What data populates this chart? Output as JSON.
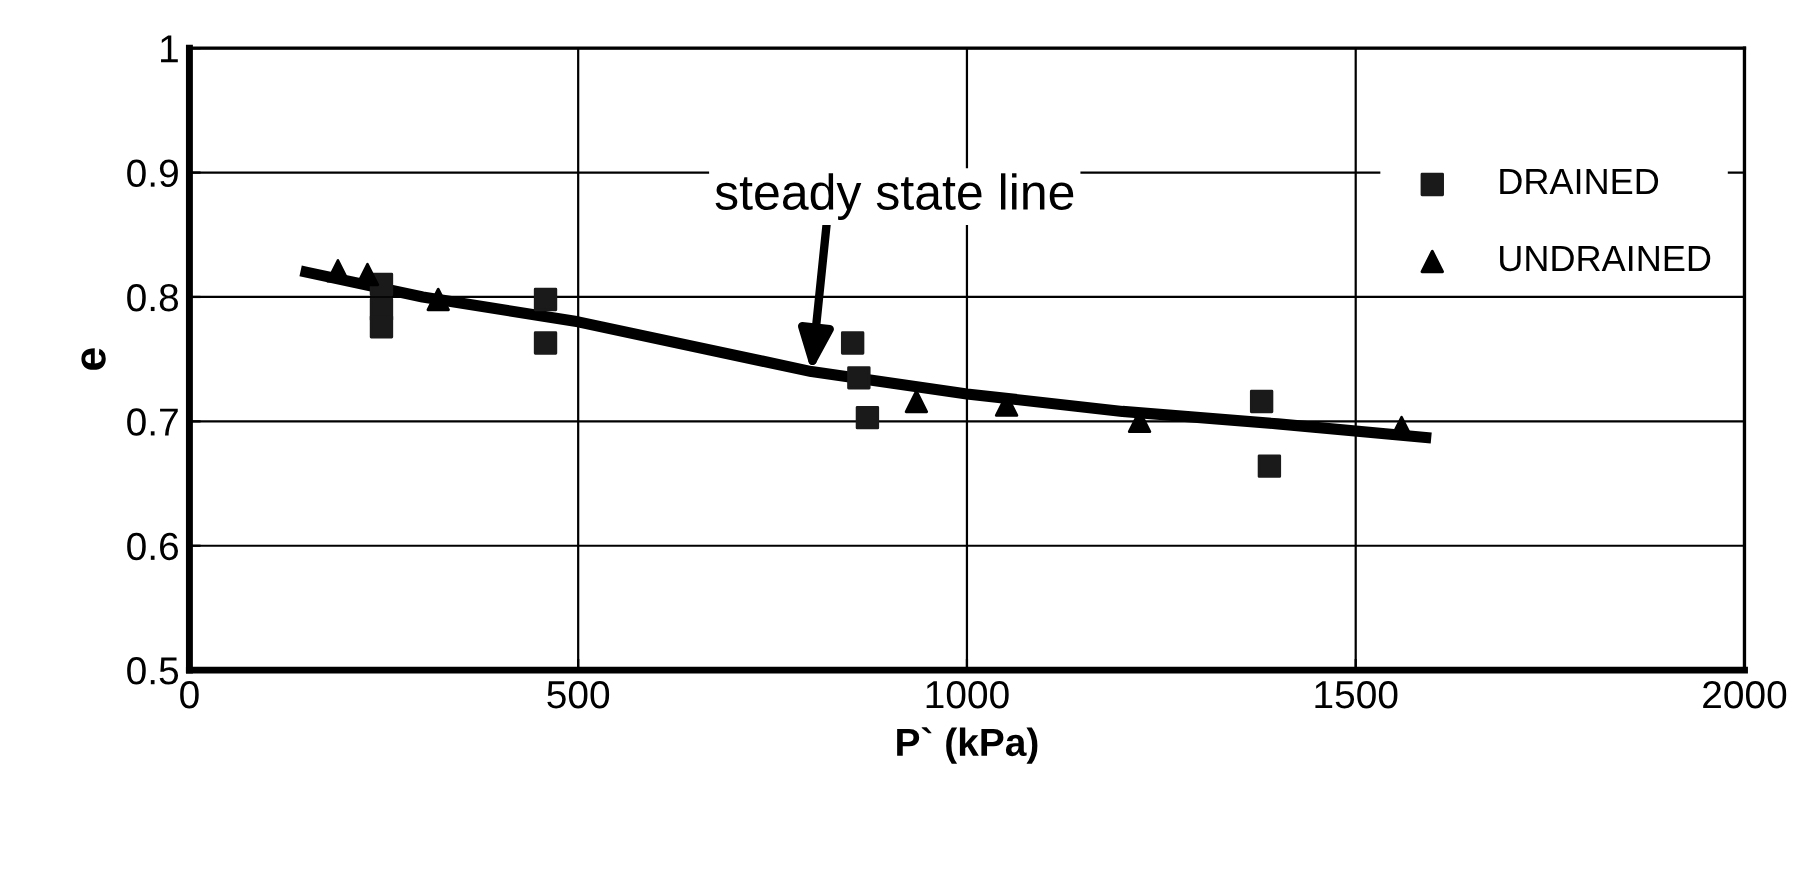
{
  "chart_data": {
    "type": "scatter",
    "xlabel": "P` (kPa)",
    "ylabel": "e",
    "xlim": [
      0,
      2000
    ],
    "xticks": [
      0,
      500,
      1000,
      1500,
      2000
    ],
    "ylim": [
      0.5,
      1
    ],
    "yticks": [
      0.5,
      0.6,
      0.7,
      0.8,
      0.9,
      1
    ],
    "grid": true,
    "legend": "top right",
    "series": [
      {
        "name": "DRAINED",
        "marker": "square",
        "color": "#1a1a1a",
        "x": [
          247,
          247,
          247,
          458,
          458,
          853,
          861,
          872,
          1379,
          1389
        ],
        "values": [
          0.81,
          0.79,
          0.776,
          0.798,
          0.763,
          0.763,
          0.735,
          0.703,
          0.716,
          0.664
        ]
      },
      {
        "name": "UNDRAINED",
        "marker": "triangle",
        "color": "#000000",
        "x": [
          191,
          229,
          320,
          935,
          1051,
          1222,
          1559
        ],
        "values": [
          0.821,
          0.818,
          0.798,
          0.716,
          0.713,
          0.7,
          0.695
        ]
      },
      {
        "type": "line",
        "marker": "none",
        "color": "#000000",
        "x": [
          150,
          300,
          500,
          800,
          1000,
          1200,
          1400,
          1590
        ],
        "values": [
          0.82,
          0.8,
          0.78,
          0.74,
          0.722,
          0.708,
          0.698,
          0.687
        ]
      }
    ],
    "annotations": [
      {
        "text": "steady state line",
        "x": 800,
        "y": 0.74
      }
    ]
  }
}
